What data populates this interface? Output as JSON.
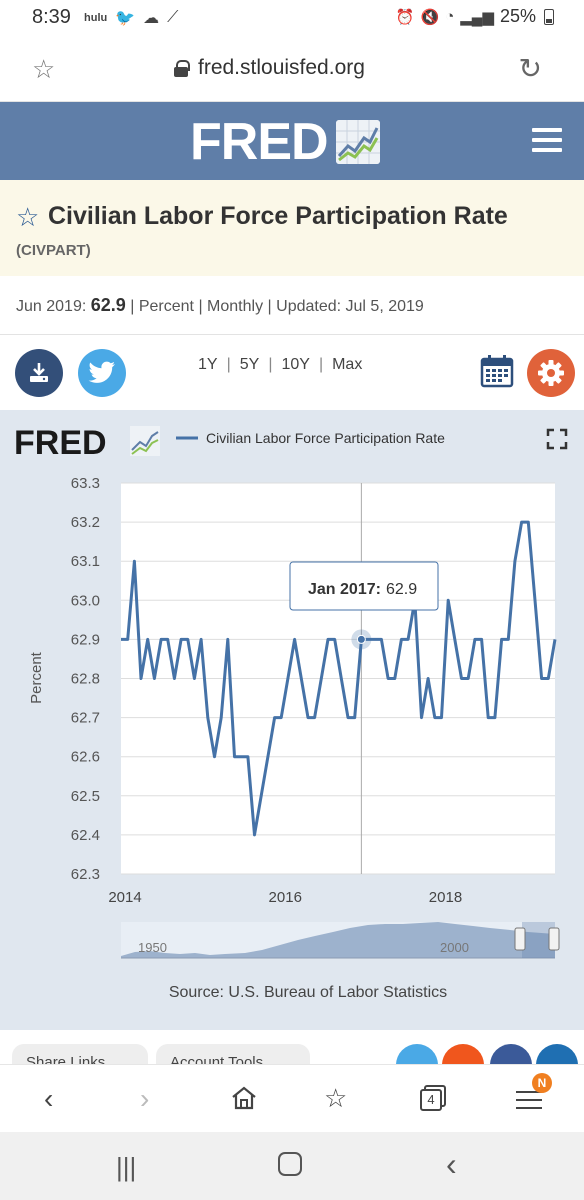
{
  "status_bar": {
    "time": "8:39",
    "left_icons": [
      "hulu",
      "twitter-icon",
      "cloud-icon",
      "sprint-icon"
    ],
    "battery": "25%"
  },
  "address_bar": {
    "url": "fred.stlouisfed.org"
  },
  "series": {
    "title": "Civilian Labor Force Participation Rate",
    "id": "(CIVPART)",
    "latest_period": "Jun 2019:",
    "latest_value": "62.9",
    "units": "Percent",
    "frequency": "Monthly",
    "updated_label": "Updated:",
    "updated_date": "Jul 5, 2019"
  },
  "toolbar": {
    "ranges": [
      "1Y",
      "5Y",
      "10Y",
      "Max"
    ]
  },
  "chart_header": {
    "logo": "FRED",
    "legend_label": "Civilian Labor Force Participation Rate"
  },
  "chart_data": {
    "type": "line",
    "ylabel": "Percent",
    "xlabel": "",
    "ylim": [
      62.3,
      63.3
    ],
    "yticks": [
      "63.3",
      "63.2",
      "63.1",
      "63.0",
      "62.9",
      "62.8",
      "62.7",
      "62.6",
      "62.5",
      "62.4",
      "62.3"
    ],
    "xticks": [
      "2014",
      "2016",
      "2018"
    ],
    "grid": true,
    "series": [
      {
        "name": "Civilian Labor Force Participation Rate",
        "color": "#4572a7",
        "start": "2014-01",
        "frequency": "monthly",
        "values": [
          62.9,
          62.9,
          63.1,
          62.8,
          62.9,
          62.8,
          62.9,
          62.9,
          62.8,
          62.9,
          62.9,
          62.8,
          62.9,
          62.7,
          62.6,
          62.7,
          62.9,
          62.6,
          62.6,
          62.6,
          62.4,
          62.5,
          62.6,
          62.7,
          62.7,
          62.8,
          62.9,
          62.8,
          62.7,
          62.7,
          62.8,
          62.9,
          62.9,
          62.8,
          62.7,
          62.7,
          62.9,
          62.9,
          62.9,
          62.9,
          62.8,
          62.8,
          62.9,
          62.9,
          63.0,
          62.7,
          62.8,
          62.7,
          62.7,
          63.0,
          62.9,
          62.8,
          62.8,
          62.9,
          62.9,
          62.7,
          62.7,
          62.9,
          62.9,
          63.1,
          63.2,
          63.2,
          63.0,
          62.8,
          62.8,
          62.9
        ]
      }
    ],
    "tooltip": {
      "label": "Jan 2017:",
      "value": "62.9",
      "date": "2017-01"
    },
    "navigator": {
      "labels": [
        "1950",
        "2000"
      ]
    },
    "source": "Source: U.S. Bureau of Labor Statistics"
  },
  "share_row": {
    "share_links": "Share Links",
    "account_tools": "Account Tools"
  },
  "colors": {
    "fred_header": "#5f7ea8",
    "title_bg": "#fbf8e8",
    "chart_bg": "#e0e7ef",
    "line": "#4572a7",
    "download": "#334f79",
    "twitter": "#4aa9e6",
    "settings": "#e0623a"
  },
  "browser_nav": {
    "tab_count": "4",
    "badge": "N"
  }
}
